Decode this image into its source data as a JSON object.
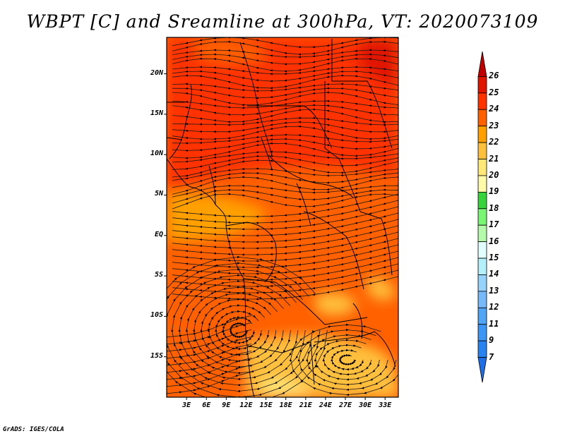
{
  "title": "WBPT [C] and Sreamline at 300hPa, VT: 2020073109",
  "credit": "GrADS: IGES/COLA",
  "map": {
    "lat_ticks": [
      {
        "value": 20,
        "label": "20N"
      },
      {
        "value": 15,
        "label": "15N"
      },
      {
        "value": 10,
        "label": "10N"
      },
      {
        "value": 5,
        "label": "5N"
      },
      {
        "value": 0,
        "label": "EQ"
      },
      {
        "value": -5,
        "label": "5S"
      },
      {
        "value": -10,
        "label": "10S"
      },
      {
        "value": -15,
        "label": "15S"
      }
    ],
    "lon_ticks": [
      {
        "value": 3,
        "label": "3E"
      },
      {
        "value": 6,
        "label": "6E"
      },
      {
        "value": 9,
        "label": "9E"
      },
      {
        "value": 12,
        "label": "12E"
      },
      {
        "value": 15,
        "label": "15E"
      },
      {
        "value": 18,
        "label": "18E"
      },
      {
        "value": 21,
        "label": "21E"
      },
      {
        "value": 24,
        "label": "24E"
      },
      {
        "value": 27,
        "label": "27E"
      },
      {
        "value": 30,
        "label": "30E"
      },
      {
        "value": 33,
        "label": "33E"
      }
    ],
    "lon_range": [
      0,
      35
    ],
    "lat_range": [
      -20,
      24.5
    ]
  },
  "colorbar": {
    "labels": [
      "7",
      "9",
      "11",
      "12",
      "13",
      "14",
      "15",
      "16",
      "17",
      "18",
      "19",
      "20",
      "21",
      "22",
      "23",
      "24",
      "25",
      "26"
    ],
    "colors": [
      "#1e6ee6",
      "#2882f0",
      "#3c96f5",
      "#50a5f5",
      "#78b9fa",
      "#96d2fa",
      "#b4f0fa",
      "#e1ffff",
      "#b4faaa",
      "#78f573",
      "#37d23c",
      "#fffaaa",
      "#ffe878",
      "#ffc03c",
      "#ffa000",
      "#ff6000",
      "#ff3200",
      "#e11400",
      "#c00000"
    ]
  },
  "field_colors": {
    "c20": "#ffe878",
    "c21": "#ffc03c",
    "c22": "#ffa000",
    "c23": "#ff6000",
    "c24": "#ff3200",
    "c25": "#e11400"
  }
}
